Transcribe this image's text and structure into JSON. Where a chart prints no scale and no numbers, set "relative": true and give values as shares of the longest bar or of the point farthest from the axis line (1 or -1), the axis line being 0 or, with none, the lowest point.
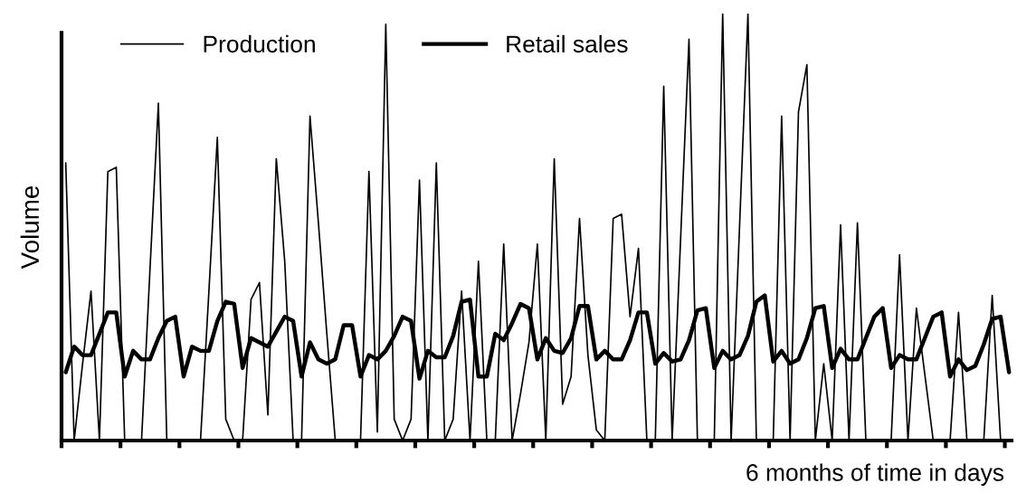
{
  "chart_data": {
    "type": "line",
    "relative": true,
    "xlabel": "6 months of time in days",
    "ylabel": "Volume",
    "legend": "top left",
    "grid": false,
    "marker": "none",
    "line_style": "solid",
    "categories": [
      null,
      null,
      null,
      null,
      null,
      null,
      null,
      null,
      null,
      null,
      null,
      null,
      null,
      null,
      null,
      null,
      null,
      null,
      null,
      null,
      null,
      null,
      null,
      null,
      null,
      null,
      null,
      null,
      null,
      null,
      null,
      null,
      null,
      null,
      null,
      null,
      null,
      null,
      null,
      null,
      null,
      null,
      null,
      null,
      null,
      null,
      null,
      null,
      null,
      null,
      null,
      null,
      null,
      null,
      null,
      null,
      null,
      null,
      null,
      null,
      null,
      null,
      null,
      null,
      null,
      null,
      null,
      null,
      null,
      null,
      null,
      null,
      null,
      null,
      null,
      null,
      null,
      null,
      null,
      null,
      null,
      null,
      null,
      null,
      null,
      null,
      null,
      null,
      null,
      null,
      null,
      null,
      null,
      null,
      null,
      null,
      null,
      null,
      null,
      null,
      null,
      null,
      null,
      null,
      null,
      null,
      null,
      null,
      null,
      null,
      null,
      null,
      null
    ],
    "series": [
      {
        "name": "Production",
        "color": "#000000",
        "values": [
          0.65,
          0,
          0.18,
          0.35,
          0,
          0.63,
          0.64,
          0,
          0,
          0,
          0.4,
          0.79,
          0,
          0,
          0,
          0,
          0,
          0.35,
          0.71,
          0.05,
          0,
          0,
          0.33,
          0.37,
          0.06,
          0.66,
          0.42,
          0,
          0,
          0.76,
          0.51,
          0.25,
          0,
          0,
          0,
          0,
          0.63,
          0.02,
          0.975,
          0.05,
          0,
          0.05,
          0.61,
          0,
          0.65,
          0,
          0.05,
          0.35,
          0,
          0.42,
          0,
          0,
          0.46,
          0,
          0.11,
          0.23,
          0.46,
          0,
          0.66,
          0.085,
          0.15,
          0.52,
          0.2,
          0.025,
          0,
          0.52,
          0.53,
          0.29,
          0.45,
          0,
          0,
          0.83,
          0,
          0.47,
          0.94,
          0,
          0,
          0,
          1.0,
          0,
          0.5,
          1.0,
          0,
          0,
          0,
          0.76,
          0,
          0.77,
          0.88,
          0,
          0.18,
          0,
          0.505,
          0,
          0.51,
          0,
          0,
          0,
          0,
          0.435,
          0,
          0.31,
          0.155,
          0,
          0,
          0,
          0.3,
          0,
          0,
          0,
          0.34,
          0,
          0
        ]
      },
      {
        "name": "Retail sales",
        "color": "#000000",
        "values": [
          0.16,
          0.22,
          0.2,
          0.2,
          0.25,
          0.3,
          0.3,
          0.15,
          0.21,
          0.19,
          0.19,
          0.24,
          0.28,
          0.29,
          0.15,
          0.22,
          0.21,
          0.21,
          0.28,
          0.325,
          0.32,
          0.17,
          0.24,
          0.23,
          0.22,
          0.255,
          0.29,
          0.28,
          0.15,
          0.23,
          0.19,
          0.18,
          0.19,
          0.27,
          0.27,
          0.15,
          0.2,
          0.19,
          0.21,
          0.245,
          0.29,
          0.28,
          0.145,
          0.21,
          0.195,
          0.195,
          0.245,
          0.325,
          0.33,
          0.15,
          0.15,
          0.25,
          0.235,
          0.275,
          0.32,
          0.31,
          0.19,
          0.24,
          0.21,
          0.205,
          0.24,
          0.315,
          0.315,
          0.19,
          0.21,
          0.19,
          0.19,
          0.235,
          0.3,
          0.3,
          0.18,
          0.205,
          0.185,
          0.19,
          0.235,
          0.305,
          0.31,
          0.17,
          0.21,
          0.19,
          0.2,
          0.245,
          0.325,
          0.34,
          0.185,
          0.21,
          0.18,
          0.19,
          0.24,
          0.31,
          0.315,
          0.17,
          0.215,
          0.19,
          0.19,
          0.24,
          0.29,
          0.31,
          0.17,
          0.2,
          0.19,
          0.19,
          0.24,
          0.29,
          0.3,
          0.15,
          0.19,
          0.165,
          0.175,
          0.225,
          0.285,
          0.29,
          0.16
        ]
      }
    ]
  }
}
